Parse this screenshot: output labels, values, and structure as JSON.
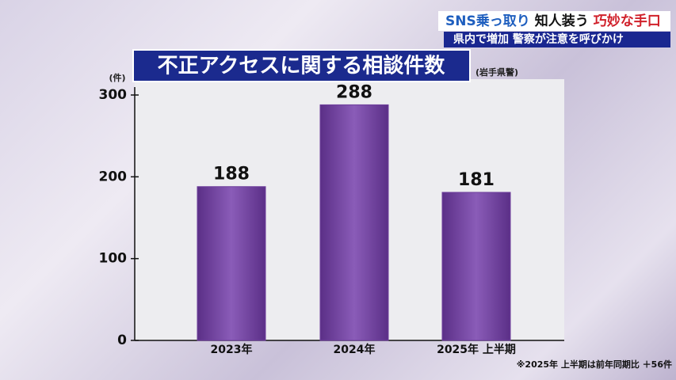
{
  "banner": {
    "parts": [
      {
        "text": "SNS乗っ取り",
        "color": "#1f5fbf"
      },
      {
        "text": "知人装う",
        "color": "#111111"
      },
      {
        "text": "巧妙な手口",
        "color": "#d0202a"
      }
    ],
    "subline": "県内で増加 警察が注意を呼びかけ"
  },
  "chart_data": {
    "type": "bar",
    "title": "不正アクセスに関する相談件数",
    "source": "(岩手県警)",
    "y_label": "(件)",
    "categories": [
      "2023年",
      "2024年",
      "2025年 上半期"
    ],
    "values": [
      188,
      288,
      181
    ],
    "color": "#6e3f9c",
    "ylim": [
      0,
      300
    ],
    "yticks": [
      0,
      100,
      200,
      300
    ],
    "grid": false,
    "note": "※2025年 上半期は前年同期比 ＋56件"
  }
}
